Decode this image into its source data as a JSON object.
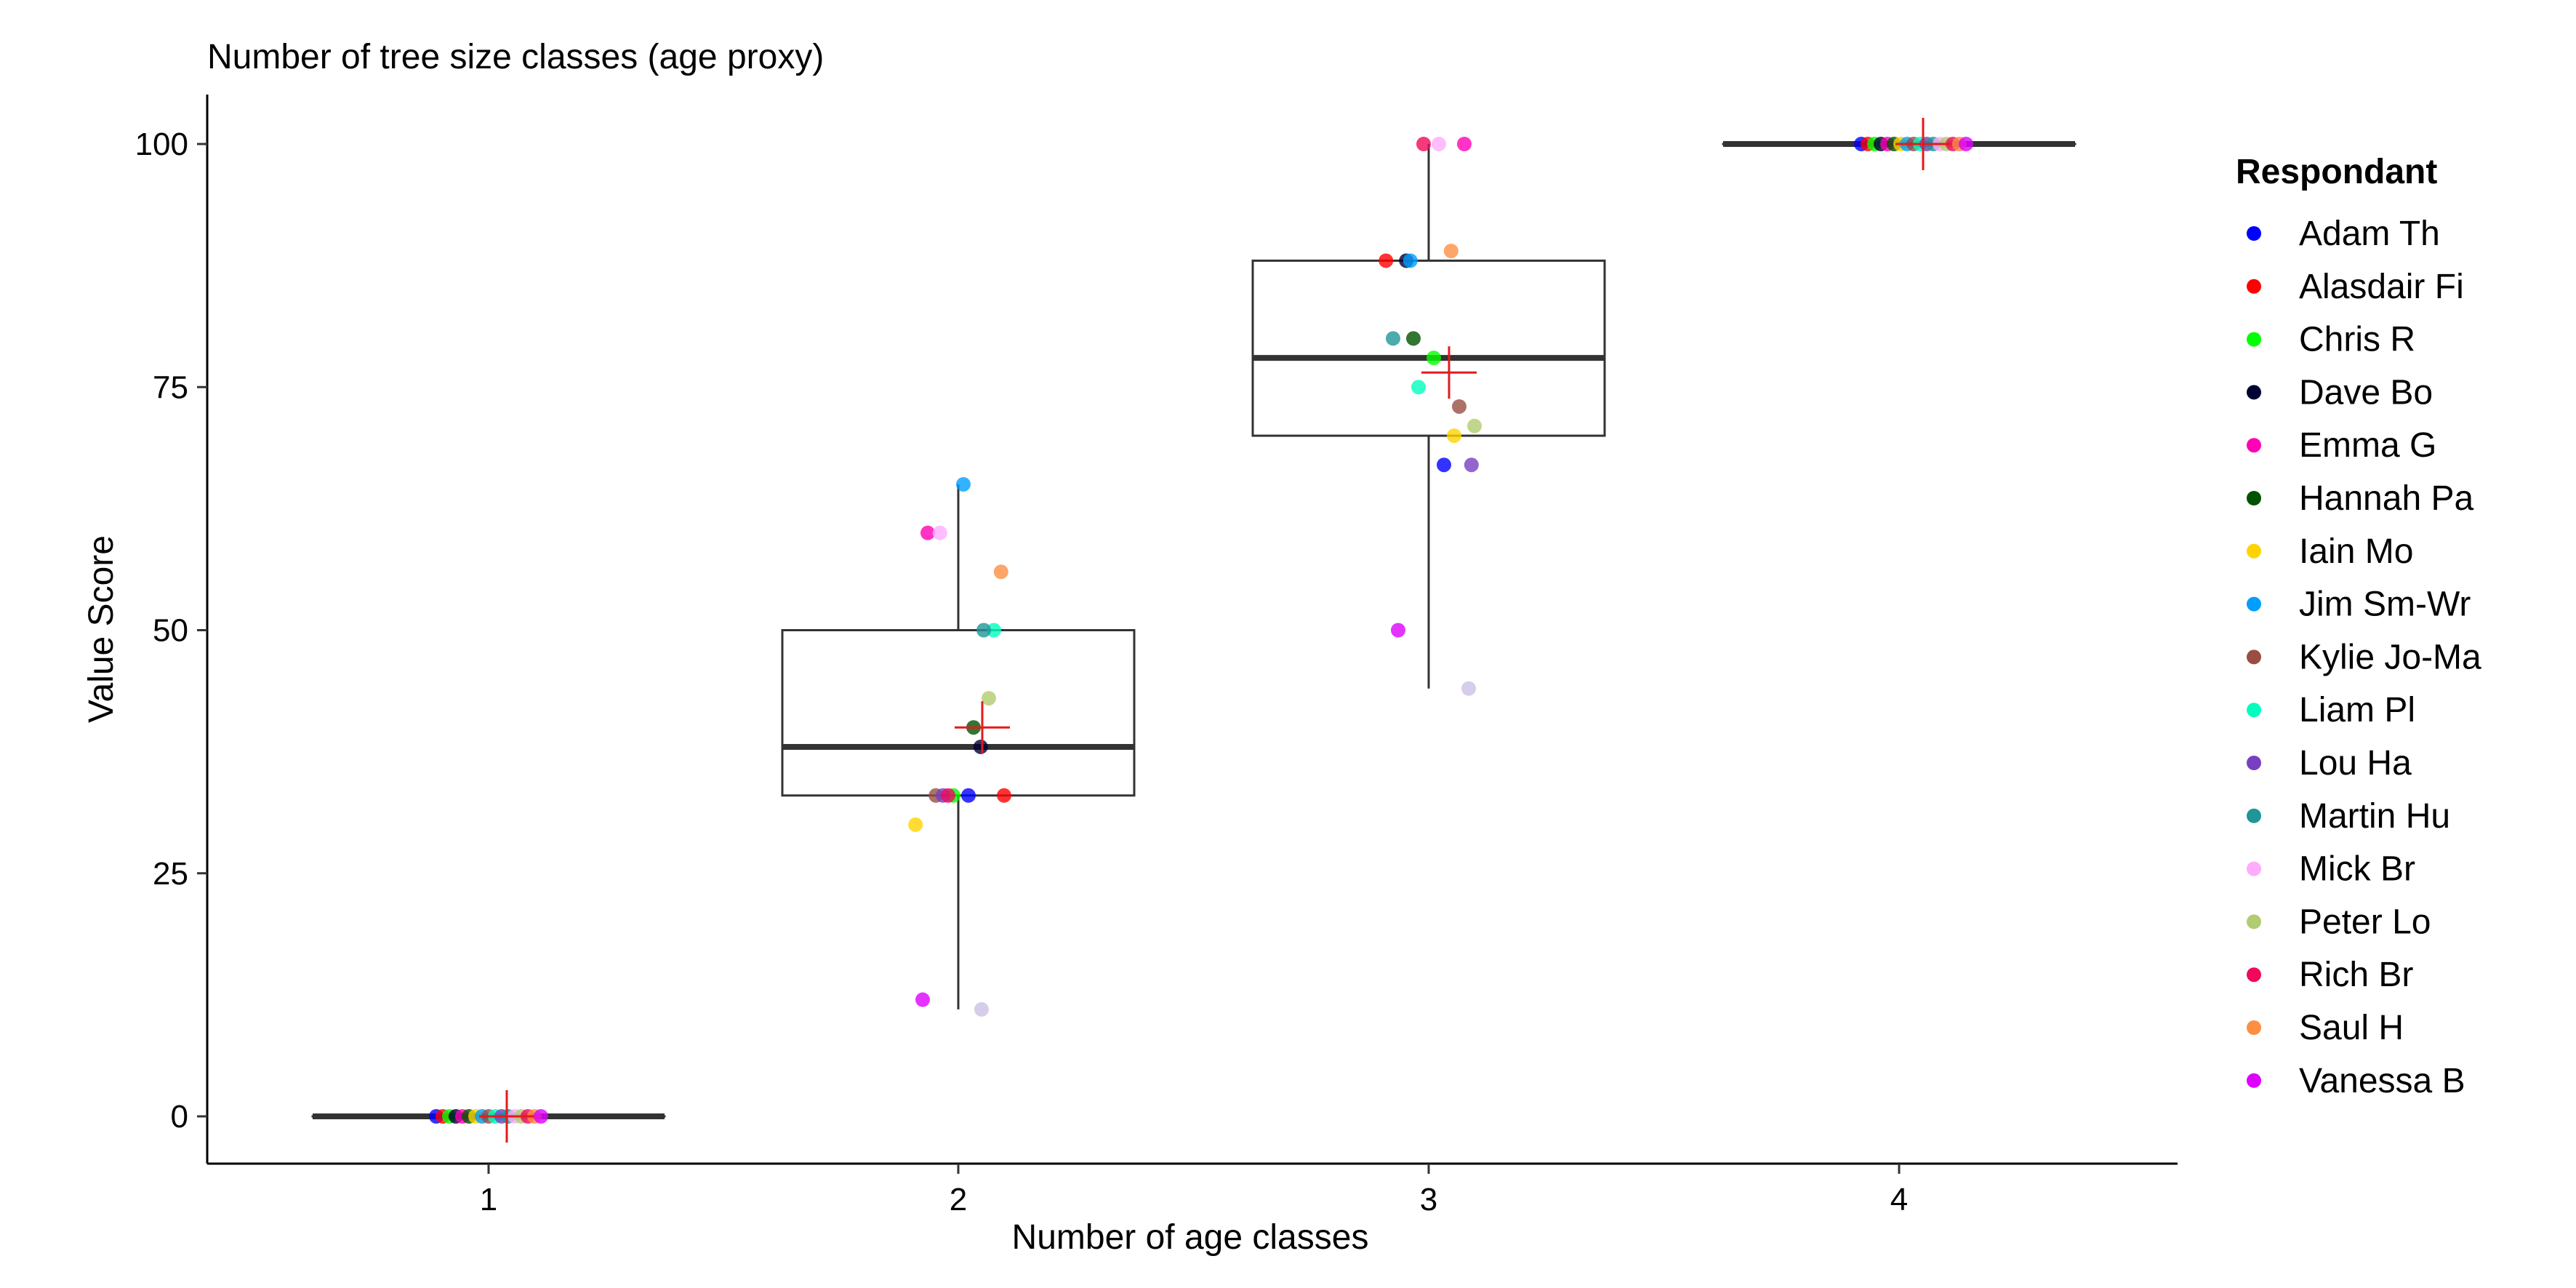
{
  "chart_data": {
    "type": "box",
    "title": "Number of tree size classes (age proxy)",
    "xlabel": "Number of age classes",
    "ylabel": "Value Score",
    "categories": [
      "1",
      "2",
      "3",
      "4"
    ],
    "yticks": [
      "0",
      "25",
      "50",
      "75",
      "100"
    ],
    "ylim": [
      -5,
      105
    ],
    "grid": false,
    "legend": {
      "title": "Respondant",
      "position": "right"
    },
    "mean_marker_color": "#e41a1c",
    "boxes": [
      {
        "category": "1",
        "min": 0,
        "q1": 0,
        "median": 0,
        "q3": 0,
        "max": 0,
        "mean": 0
      },
      {
        "category": "2",
        "min": 11,
        "q1": 33,
        "median": 38,
        "q3": 50,
        "max": 65,
        "mean": 40
      },
      {
        "category": "3",
        "min": 44,
        "q1": 70,
        "median": 78,
        "q3": 88,
        "max": 100,
        "mean": 76.5
      },
      {
        "category": "4",
        "min": 100,
        "q1": 100,
        "median": 100,
        "q3": 100,
        "max": 100,
        "mean": 100
      }
    ],
    "series": [
      {
        "name": "Adam Th",
        "color": "#0000ff",
        "values": [
          0,
          33,
          67,
          100
        ]
      },
      {
        "name": "Alasdair Fi",
        "color": "#ff0000",
        "values": [
          0,
          33,
          88,
          100
        ]
      },
      {
        "name": "Chris R",
        "color": "#00ff00",
        "values": [
          0,
          33,
          78,
          100
        ]
      },
      {
        "name": "Dave Bo",
        "color": "#000033",
        "values": [
          0,
          38,
          88,
          100
        ]
      },
      {
        "name": "Emma G",
        "color": "#ff00b6",
        "values": [
          0,
          60,
          100,
          100
        ]
      },
      {
        "name": "Hannah Pa",
        "color": "#005300",
        "values": [
          0,
          40,
          80,
          100
        ]
      },
      {
        "name": "Iain Mo",
        "color": "#ffd300",
        "values": [
          0,
          30,
          70,
          100
        ]
      },
      {
        "name": "Jim Sm-Wr",
        "color": "#009fff",
        "values": [
          0,
          65,
          88,
          100
        ]
      },
      {
        "name": "Kylie Jo-Ma",
        "color": "#9a4d42",
        "values": [
          0,
          33,
          73,
          100
        ]
      },
      {
        "name": "Liam Pl",
        "color": "#00ffbe",
        "values": [
          0,
          50,
          75,
          100
        ]
      },
      {
        "name": "Lou Ha",
        "color": "#783fc1",
        "values": [
          0,
          33,
          67,
          100
        ]
      },
      {
        "name": "Martin Hu",
        "color": "#1f9698",
        "values": [
          0,
          50,
          80,
          100
        ]
      },
      {
        "name": "Mick Br",
        "color": "#ffacfd",
        "values": [
          0,
          60,
          100,
          100
        ]
      },
      {
        "name": "Peter Lo",
        "color": "#b1cc71",
        "values": [
          0,
          43,
          71,
          100
        ]
      },
      {
        "name": "Rich Br",
        "color": "#f1085c",
        "values": [
          0,
          33,
          100,
          100
        ]
      },
      {
        "name": "Saul H",
        "color": "#fe8f42",
        "values": [
          0,
          56,
          89,
          100
        ]
      },
      {
        "name": "Vanessa B",
        "color": "#dd00ff",
        "values": [
          0,
          12,
          50,
          100
        ]
      }
    ],
    "extra_points": [
      {
        "category": "2",
        "value": 11,
        "color": "#cfc4e6"
      },
      {
        "category": "3",
        "value": 44,
        "color": "#cfc4e6"
      }
    ]
  }
}
